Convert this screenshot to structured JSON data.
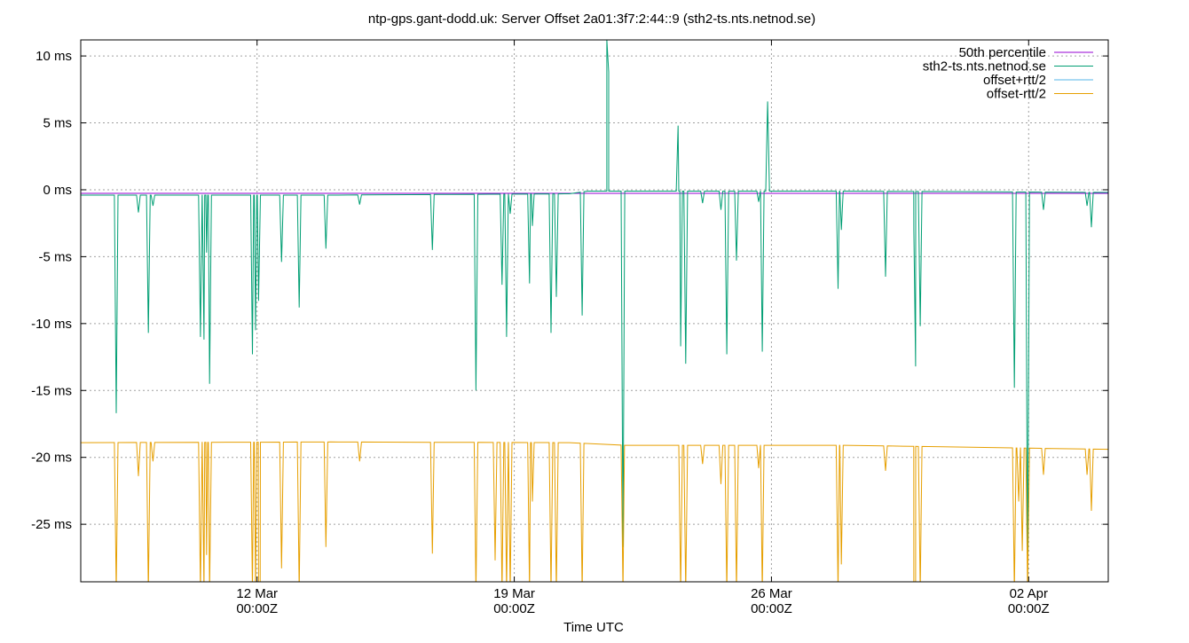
{
  "chart_data": {
    "type": "line",
    "title": "ntp-gps.gant-dodd.uk: Server Offset 2a01:3f7:2:44::9 (sth2-ts.nts.netnod.se)",
    "xlabel": "Time UTC",
    "ylabel": "",
    "xlim": [
      "03-07T04:50",
      "04-04T04:00"
    ],
    "ylim": [
      -29.3,
      11.2
    ],
    "grid": true,
    "legend_position": "top-right",
    "y_ticks": [
      {
        "value": 10,
        "label": "10 ms"
      },
      {
        "value": 5,
        "label": "5 ms"
      },
      {
        "value": 0,
        "label": "0 ms"
      },
      {
        "value": -5,
        "label": "-5 ms"
      },
      {
        "value": -10,
        "label": "-10 ms"
      },
      {
        "value": -15,
        "label": "-15 ms"
      },
      {
        "value": -20,
        "label": "-20 ms"
      },
      {
        "value": -25,
        "label": "-25 ms"
      }
    ],
    "x_ticks": [
      {
        "value": "03-12T00:00",
        "label": "12 Mar",
        "sub": "00:00Z"
      },
      {
        "value": "03-19T00:00",
        "label": "19 Mar",
        "sub": "00:00Z"
      },
      {
        "value": "03-26T00:00",
        "label": "26 Mar",
        "sub": "00:00Z"
      },
      {
        "value": "04-02T00:00",
        "label": "02 Apr",
        "sub": "00:00Z"
      }
    ],
    "series": [
      {
        "name": "50th percentile",
        "color": "#9400d3",
        "baseline": [
          [
            "03-07T04:50",
            -0.27
          ],
          [
            "04-04T04:00",
            -0.27
          ]
        ],
        "spikes": []
      },
      {
        "name": "sth2-ts.nts.netnod.se",
        "color": "#009e73",
        "baseline": [
          [
            "03-07T04:50",
            -0.4
          ],
          [
            "03-14T00:00",
            -0.4
          ],
          [
            "03-20T12:00",
            -0.3
          ],
          [
            "03-21T00:00",
            -0.1
          ],
          [
            "03-28T00:00",
            -0.1
          ],
          [
            "04-04T04:00",
            -0.2
          ]
        ],
        "spikes": [
          [
            "03-08T04:00",
            -16.7
          ],
          [
            "03-08T18:30",
            -1.7
          ],
          [
            "03-09T01:00",
            -10.7
          ],
          [
            "03-09T04:00",
            -1.2
          ],
          [
            "03-10T11:00",
            -11.0
          ],
          [
            "03-10T13:20",
            -11.2
          ],
          [
            "03-10T15:00",
            -4.7
          ],
          [
            "03-10T17:00",
            -14.5
          ],
          [
            "03-11T21:00",
            -12.3
          ],
          [
            "03-11T23:00",
            -10.5
          ],
          [
            "03-12T01:00",
            -8.3
          ],
          [
            "03-12T16:00",
            -5.4
          ],
          [
            "03-13T03:30",
            -8.8
          ],
          [
            "03-13T21:00",
            -4.4
          ],
          [
            "03-14T19:00",
            -1.1
          ],
          [
            "03-16T18:30",
            -4.5
          ],
          [
            "03-17T23:00",
            -15.0
          ],
          [
            "03-18T16:00",
            -7.1
          ],
          [
            "03-18T19:00",
            -11.0
          ],
          [
            "03-18T21:20",
            -1.8
          ],
          [
            "03-19T10:00",
            -7.0
          ],
          [
            "03-19T11:50",
            -2.7
          ],
          [
            "03-20T00:00",
            -10.7
          ],
          [
            "03-20T03:30",
            -8.0
          ],
          [
            "03-20T20:20",
            -9.4
          ],
          [
            "03-21T12:30",
            11.2
          ],
          [
            "03-21T13:40",
            8.8
          ],
          [
            "03-21T23:00",
            -26.7
          ],
          [
            "03-23T11:00",
            4.8
          ],
          [
            "03-23T12:40",
            -11.7
          ],
          [
            "03-23T16:00",
            -13.0
          ],
          [
            "03-24T03:00",
            -1.0
          ],
          [
            "03-24T15:00",
            -1.5
          ],
          [
            "03-24T18:50",
            -12.3
          ],
          [
            "03-25T01:10",
            -5.3
          ],
          [
            "03-25T15:40",
            -0.9
          ],
          [
            "03-25T18:00",
            -12.1
          ],
          [
            "03-25T21:30",
            6.6
          ],
          [
            "03-27T19:30",
            -7.4
          ],
          [
            "03-27T21:40",
            -3.0
          ],
          [
            "03-29T02:30",
            -6.5
          ],
          [
            "03-29T21:00",
            -3.0
          ],
          [
            "03-29T22:10",
            -13.2
          ],
          [
            "03-30T01:10",
            -10.2
          ],
          [
            "04-01T14:40",
            -14.8
          ],
          [
            "04-01T23:20",
            -29.0
          ],
          [
            "04-02T09:40",
            -1.5
          ],
          [
            "04-03T14:10",
            -1.2
          ],
          [
            "04-03T17:00",
            -2.8
          ]
        ]
      },
      {
        "name": "offset+rtt/2",
        "color": "#56b4e9",
        "baseline": [],
        "spikes": []
      },
      {
        "name": "offset-rtt/2",
        "color": "#e69f00",
        "baseline": [
          [
            "03-07T04:50",
            -18.9
          ],
          [
            "03-14T00:00",
            -18.85
          ],
          [
            "03-20T12:00",
            -18.9
          ],
          [
            "03-22T00:00",
            -19.1
          ],
          [
            "03-28T00:00",
            -19.1
          ],
          [
            "04-04T04:00",
            -19.4
          ]
        ],
        "spikes": [
          [
            "03-08T04:00",
            -30
          ],
          [
            "03-08T18:30",
            -21.4
          ],
          [
            "03-09T01:00",
            -30
          ],
          [
            "03-09T04:00",
            -20.3
          ],
          [
            "03-10T11:00",
            -30
          ],
          [
            "03-10T13:20",
            -30
          ],
          [
            "03-10T15:00",
            -27.3
          ],
          [
            "03-10T17:00",
            -30
          ],
          [
            "03-11T21:00",
            -30
          ],
          [
            "03-11T23:00",
            -30
          ],
          [
            "03-12T01:00",
            -30
          ],
          [
            "03-12T02:00",
            -30
          ],
          [
            "03-12T16:00",
            -28.3
          ],
          [
            "03-13T03:30",
            -30
          ],
          [
            "03-13T21:00",
            -26.7
          ],
          [
            "03-14T19:00",
            -20.3
          ],
          [
            "03-16T18:30",
            -27.2
          ],
          [
            "03-17T23:00",
            -30
          ],
          [
            "03-18T11:30",
            -27.7
          ],
          [
            "03-18T16:00",
            -30
          ],
          [
            "03-18T19:00",
            -30
          ],
          [
            "03-18T21:20",
            -30
          ],
          [
            "03-19T10:00",
            -30
          ],
          [
            "03-19T11:50",
            -23.3
          ],
          [
            "03-20T00:00",
            -30
          ],
          [
            "03-20T03:30",
            -30
          ],
          [
            "03-20T20:20",
            -30
          ],
          [
            "03-21T23:00",
            -30
          ],
          [
            "03-23T12:40",
            -30
          ],
          [
            "03-23T16:00",
            -30
          ],
          [
            "03-24T03:00",
            -20.5
          ],
          [
            "03-24T15:00",
            -22.0
          ],
          [
            "03-24T18:50",
            -30
          ],
          [
            "03-25T01:10",
            -30
          ],
          [
            "03-25T15:40",
            -20.8
          ],
          [
            "03-25T18:00",
            -30
          ],
          [
            "03-27T19:30",
            -30
          ],
          [
            "03-27T21:40",
            -28.0
          ],
          [
            "03-29T02:30",
            -21.0
          ],
          [
            "03-29T21:00",
            -30
          ],
          [
            "03-29T22:10",
            -30
          ],
          [
            "03-30T01:10",
            -30
          ],
          [
            "04-01T14:40",
            -30
          ],
          [
            "04-01T17:30",
            -23.3
          ],
          [
            "04-01T19:50",
            -27.0
          ],
          [
            "04-01T23:20",
            -30
          ],
          [
            "04-02T09:40",
            -21.3
          ],
          [
            "04-03T14:10",
            -21.3
          ],
          [
            "04-03T17:00",
            -24.0
          ]
        ]
      }
    ]
  }
}
